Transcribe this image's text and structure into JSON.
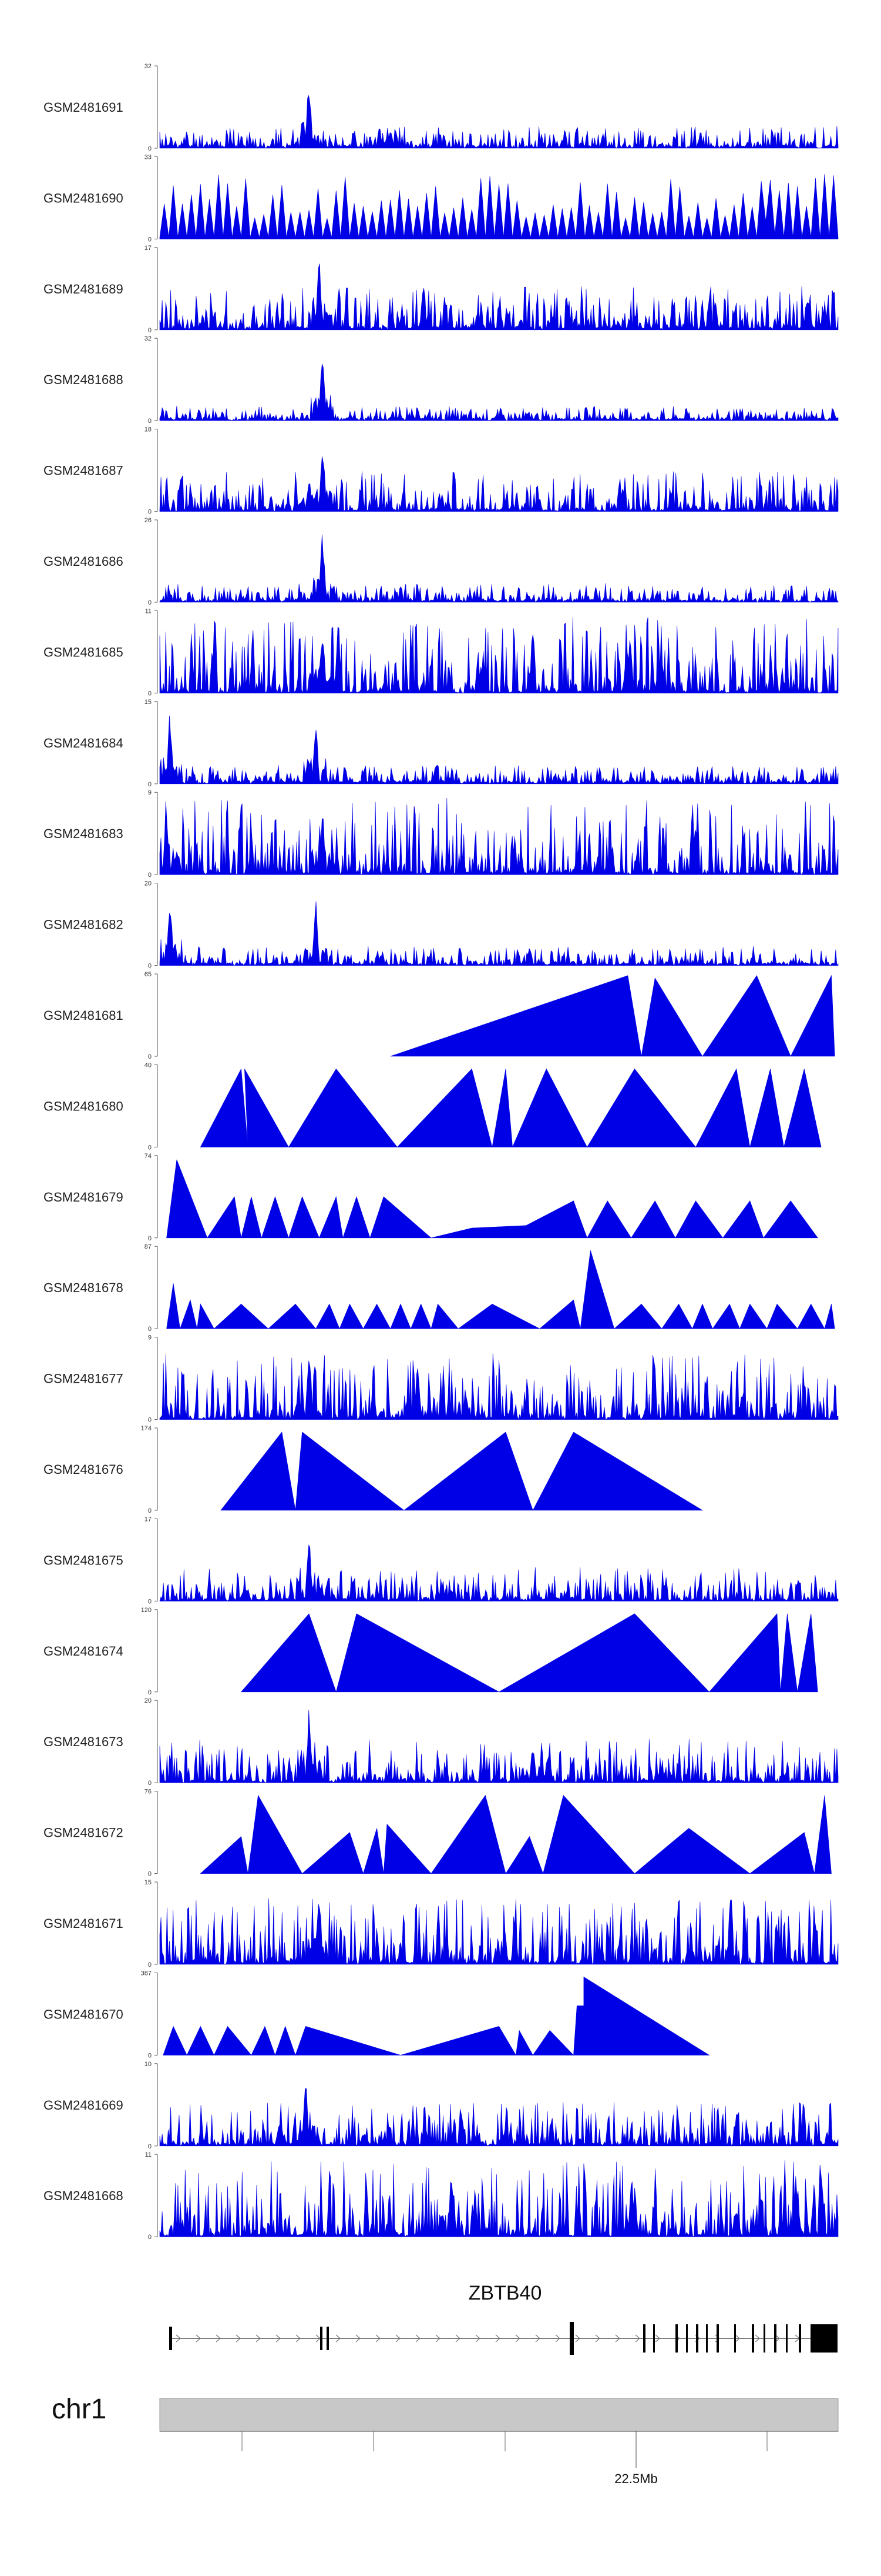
{
  "chart_data": {
    "type": "area",
    "title": "",
    "chromosome": "chr1",
    "genome_axis": {
      "major_tick_label": "22.5Mb",
      "minor_ticks": 4
    },
    "gene": {
      "name": "ZBTB40",
      "strand": "+"
    },
    "colors": {
      "signal": "#0000e6",
      "gene": "#000000",
      "ideogram": "#c8c8c8"
    },
    "tracks": [
      {
        "name": "GSM2481691",
        "ymin": 0,
        "ymax": 32,
        "style": "dense",
        "peaks": [
          [
            0.22,
            0.95
          ],
          [
            0.34,
            0.25
          ]
        ],
        "base": 0.1,
        "seed": 11
      },
      {
        "name": "GSM2481690",
        "ymin": 0,
        "ymax": 33,
        "style": "spiky",
        "peaks": [
          [
            0.9,
            0.95
          ]
        ],
        "base": 0.3,
        "seed": 12
      },
      {
        "name": "GSM2481689",
        "ymin": 0,
        "ymax": 17,
        "style": "dense",
        "peaks": [
          [
            0.235,
            0.95
          ]
        ],
        "base": 0.2,
        "seed": 13
      },
      {
        "name": "GSM2481688",
        "ymin": 0,
        "ymax": 32,
        "style": "dense",
        "peaks": [
          [
            0.24,
            0.95
          ]
        ],
        "base": 0.06,
        "seed": 14
      },
      {
        "name": "GSM2481687",
        "ymin": 0,
        "ymax": 18,
        "style": "dense",
        "peaks": [
          [
            0.24,
            0.95
          ],
          [
            0.22,
            0.5
          ]
        ],
        "base": 0.18,
        "seed": 15
      },
      {
        "name": "GSM2481686",
        "ymin": 0,
        "ymax": 26,
        "style": "dense",
        "peaks": [
          [
            0.24,
            0.95
          ]
        ],
        "base": 0.08,
        "seed": 16
      },
      {
        "name": "GSM2481685",
        "ymin": 0,
        "ymax": 11,
        "style": "dense",
        "peaks": [
          [
            0.24,
            0.9
          ]
        ],
        "base": 0.35,
        "seed": 17
      },
      {
        "name": "GSM2481684",
        "ymin": 0,
        "ymax": 15,
        "style": "dense",
        "peaks": [
          [
            0.015,
            0.95
          ],
          [
            0.23,
            0.9
          ]
        ],
        "base": 0.08,
        "seed": 18
      },
      {
        "name": "GSM2481683",
        "ymin": 0,
        "ymax": 9,
        "style": "dense",
        "peaks": [
          [
            0.01,
            0.9
          ],
          [
            0.24,
            0.9
          ]
        ],
        "base": 0.35,
        "seed": 19
      },
      {
        "name": "GSM2481682",
        "ymin": 0,
        "ymax": 20,
        "style": "dense",
        "peaks": [
          [
            0.015,
            0.95
          ],
          [
            0.23,
            0.85
          ]
        ],
        "base": 0.08,
        "seed": 20
      },
      {
        "name": "GSM2481681",
        "ymin": 0,
        "ymax": 65,
        "style": "poly",
        "points": [
          [
            0.34,
            0
          ],
          [
            0.69,
            0.98
          ],
          [
            0.71,
            0
          ],
          [
            0.73,
            0.95
          ],
          [
            0.8,
            0
          ],
          [
            0.88,
            0.98
          ],
          [
            0.93,
            0
          ],
          [
            0.99,
            0.98
          ],
          [
            0.995,
            0
          ]
        ]
      },
      {
        "name": "GSM2481680",
        "ymin": 0,
        "ymax": 40,
        "style": "poly",
        "points": [
          [
            0.06,
            0
          ],
          [
            0.12,
            0.95
          ],
          [
            0.13,
            0
          ],
          [
            0.125,
            0.95
          ],
          [
            0.19,
            0
          ],
          [
            0.26,
            0.95
          ],
          [
            0.35,
            0
          ],
          [
            0.46,
            0.95
          ],
          [
            0.49,
            0
          ],
          [
            0.51,
            0.95
          ],
          [
            0.52,
            0
          ],
          [
            0.57,
            0.95
          ],
          [
            0.63,
            0
          ],
          [
            0.7,
            0.95
          ],
          [
            0.79,
            0
          ],
          [
            0.85,
            0.95
          ],
          [
            0.87,
            0
          ],
          [
            0.9,
            0.95
          ],
          [
            0.92,
            0
          ],
          [
            0.95,
            0.95
          ],
          [
            0.975,
            0
          ]
        ]
      },
      {
        "name": "GSM2481679",
        "ymin": 0,
        "ymax": 74,
        "style": "poly",
        "points": [
          [
            0.01,
            0
          ],
          [
            0.025,
            0.95
          ],
          [
            0.07,
            0
          ],
          [
            0.11,
            0.5
          ],
          [
            0.12,
            0
          ],
          [
            0.135,
            0.5
          ],
          [
            0.15,
            0
          ],
          [
            0.17,
            0.5
          ],
          [
            0.19,
            0
          ],
          [
            0.21,
            0.5
          ],
          [
            0.235,
            0
          ],
          [
            0.26,
            0.5
          ],
          [
            0.27,
            0
          ],
          [
            0.29,
            0.5
          ],
          [
            0.31,
            0
          ],
          [
            0.33,
            0.5
          ],
          [
            0.4,
            0
          ],
          [
            0.46,
            0.12
          ],
          [
            0.54,
            0.15
          ],
          [
            0.61,
            0.45
          ],
          [
            0.63,
            0
          ],
          [
            0.66,
            0.45
          ],
          [
            0.695,
            0
          ],
          [
            0.73,
            0.45
          ],
          [
            0.76,
            0
          ],
          [
            0.79,
            0.45
          ],
          [
            0.83,
            0
          ],
          [
            0.87,
            0.45
          ],
          [
            0.89,
            0
          ],
          [
            0.93,
            0.45
          ],
          [
            0.97,
            0
          ]
        ]
      },
      {
        "name": "GSM2481678",
        "ymin": 0,
        "ymax": 87,
        "style": "poly",
        "points": [
          [
            0.01,
            0
          ],
          [
            0.02,
            0.55
          ],
          [
            0.03,
            0
          ],
          [
            0.045,
            0.35
          ],
          [
            0.055,
            0
          ],
          [
            0.06,
            0.3
          ],
          [
            0.08,
            0
          ],
          [
            0.12,
            0.3
          ],
          [
            0.16,
            0
          ],
          [
            0.2,
            0.3
          ],
          [
            0.23,
            0
          ],
          [
            0.25,
            0.3
          ],
          [
            0.265,
            0
          ],
          [
            0.28,
            0.3
          ],
          [
            0.3,
            0
          ],
          [
            0.32,
            0.3
          ],
          [
            0.34,
            0
          ],
          [
            0.355,
            0.3
          ],
          [
            0.37,
            0
          ],
          [
            0.385,
            0.3
          ],
          [
            0.4,
            0
          ],
          [
            0.41,
            0.3
          ],
          [
            0.44,
            0
          ],
          [
            0.49,
            0.3
          ],
          [
            0.56,
            0
          ],
          [
            0.61,
            0.35
          ],
          [
            0.62,
            0
          ],
          [
            0.635,
            0.95
          ],
          [
            0.67,
            0
          ],
          [
            0.71,
            0.3
          ],
          [
            0.74,
            0
          ],
          [
            0.765,
            0.3
          ],
          [
            0.785,
            0
          ],
          [
            0.8,
            0.3
          ],
          [
            0.815,
            0
          ],
          [
            0.84,
            0.3
          ],
          [
            0.855,
            0
          ],
          [
            0.87,
            0.3
          ],
          [
            0.895,
            0
          ],
          [
            0.91,
            0.3
          ],
          [
            0.94,
            0
          ],
          [
            0.96,
            0.3
          ],
          [
            0.98,
            0
          ],
          [
            0.99,
            0.3
          ],
          [
            0.995,
            0
          ]
        ]
      },
      {
        "name": "GSM2481677",
        "ymin": 0,
        "ymax": 9,
        "style": "dense",
        "peaks": [
          [
            0.22,
            0.9
          ],
          [
            0.38,
            0.75
          ]
        ],
        "base": 0.3,
        "seed": 21
      },
      {
        "name": "GSM2481676",
        "ymin": 0,
        "ymax": 174,
        "style": "poly",
        "points": [
          [
            0.09,
            0
          ],
          [
            0.18,
            0.95
          ],
          [
            0.2,
            0
          ],
          [
            0.21,
            0.95
          ],
          [
            0.36,
            0
          ],
          [
            0.51,
            0.95
          ],
          [
            0.55,
            0
          ],
          [
            0.61,
            0.95
          ],
          [
            0.8,
            0
          ]
        ]
      },
      {
        "name": "GSM2481675",
        "ymin": 0,
        "ymax": 17,
        "style": "dense",
        "peaks": [
          [
            0.22,
            0.95
          ]
        ],
        "base": 0.15,
        "seed": 22
      },
      {
        "name": "GSM2481674",
        "ymin": 0,
        "ymax": 120,
        "style": "poly",
        "points": [
          [
            0.12,
            0
          ],
          [
            0.22,
            0.95
          ],
          [
            0.26,
            0
          ],
          [
            0.29,
            0.95
          ],
          [
            0.5,
            0
          ],
          [
            0.7,
            0.95
          ],
          [
            0.81,
            0
          ],
          [
            0.91,
            0.95
          ],
          [
            0.915,
            0
          ],
          [
            0.925,
            0.95
          ],
          [
            0.94,
            0
          ],
          [
            0.96,
            0.95
          ],
          [
            0.97,
            0
          ]
        ]
      },
      {
        "name": "GSM2481673",
        "ymin": 0,
        "ymax": 20,
        "style": "dense",
        "peaks": [
          [
            0.22,
            0.95
          ],
          [
            0.55,
            0.5
          ]
        ],
        "base": 0.2,
        "seed": 23
      },
      {
        "name": "GSM2481672",
        "ymin": 0,
        "ymax": 76,
        "style": "poly",
        "points": [
          [
            0.06,
            0
          ],
          [
            0.12,
            0.45
          ],
          [
            0.13,
            0
          ],
          [
            0.145,
            0.95
          ],
          [
            0.21,
            0
          ],
          [
            0.28,
            0.5
          ],
          [
            0.3,
            0
          ],
          [
            0.32,
            0.55
          ],
          [
            0.33,
            0
          ],
          [
            0.335,
            0.6
          ],
          [
            0.4,
            0
          ],
          [
            0.48,
            0.95
          ],
          [
            0.51,
            0
          ],
          [
            0.545,
            0.45
          ],
          [
            0.565,
            0
          ],
          [
            0.595,
            0.95
          ],
          [
            0.7,
            0
          ],
          [
            0.78,
            0.55
          ],
          [
            0.87,
            0
          ],
          [
            0.95,
            0.5
          ],
          [
            0.965,
            0
          ],
          [
            0.98,
            0.95
          ],
          [
            0.99,
            0
          ]
        ]
      },
      {
        "name": "GSM2481671",
        "ymin": 0,
        "ymax": 15,
        "style": "dense",
        "peaks": [
          [
            0.235,
            0.95
          ]
        ],
        "base": 0.3,
        "seed": 24
      },
      {
        "name": "GSM2481670",
        "ymin": 0,
        "ymax": 387,
        "style": "poly",
        "points": [
          [
            0.005,
            0
          ],
          [
            0.02,
            0.35
          ],
          [
            0.04,
            0
          ],
          [
            0.06,
            0.35
          ],
          [
            0.08,
            0
          ],
          [
            0.1,
            0.35
          ],
          [
            0.135,
            0
          ],
          [
            0.155,
            0.35
          ],
          [
            0.17,
            0
          ],
          [
            0.185,
            0.35
          ],
          [
            0.2,
            0
          ],
          [
            0.215,
            0.35
          ],
          [
            0.355,
            0
          ],
          [
            0.5,
            0.35
          ],
          [
            0.525,
            0
          ],
          [
            0.53,
            0.3
          ],
          [
            0.55,
            0
          ],
          [
            0.575,
            0.3
          ],
          [
            0.61,
            0
          ],
          [
            0.615,
            0.6
          ],
          [
            0.625,
            0.6
          ],
          [
            0.625,
            0.95
          ],
          [
            0.81,
            0
          ]
        ]
      },
      {
        "name": "GSM2481669",
        "ymin": 0,
        "ymax": 10,
        "style": "dense",
        "peaks": [
          [
            0.215,
            0.95
          ]
        ],
        "base": 0.2,
        "seed": 25
      },
      {
        "name": "GSM2481668",
        "ymin": 0,
        "ymax": 11,
        "style": "dense",
        "peaks": [
          [
            0.43,
            0.9
          ],
          [
            0.7,
            0.7
          ],
          [
            0.94,
            0.6
          ]
        ],
        "base": 0.35,
        "seed": 26
      }
    ]
  }
}
